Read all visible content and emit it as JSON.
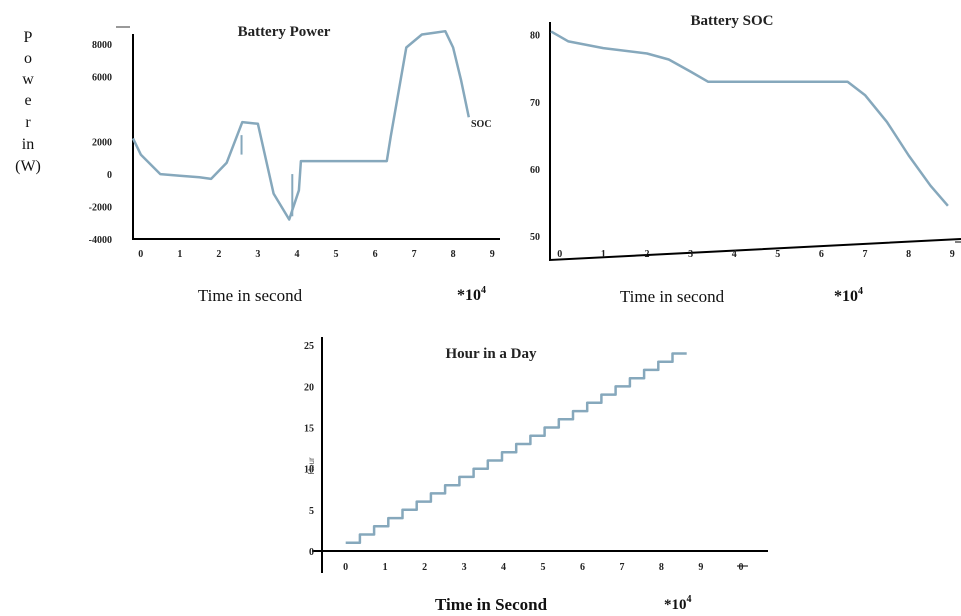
{
  "chart_data": [
    {
      "id": "power",
      "type": "line",
      "title": "Battery Power",
      "xlabel": "Time in second",
      "x_multiplier": "*10",
      "x_multiplier_exp": "4",
      "ylabel_letters": [
        "P",
        "o",
        "w",
        "e",
        "r",
        "in",
        "(W)"
      ],
      "annotation": "SOC",
      "xlim": [
        -0.2,
        9.2
      ],
      "ylim": [
        -4000,
        9000
      ],
      "xticks": [
        "0",
        "1",
        "2",
        "3",
        "4",
        "5",
        "6",
        "7",
        "8",
        "9"
      ],
      "yticks": [
        "8000",
        "6000",
        "2000",
        "0",
        "-2000",
        "-4000"
      ],
      "yticks_values": [
        8000,
        6000,
        2000,
        0,
        -2000,
        -4000
      ],
      "series": [
        {
          "color": "#86a8bc",
          "x": [
            -0.2,
            0.0,
            0.5,
            1.0,
            1.5,
            1.8,
            2.2,
            2.6,
            3.0,
            3.4,
            3.8,
            4.05,
            4.1,
            4.8,
            5.5,
            6.3,
            6.4,
            6.8,
            7.2,
            7.5,
            7.8,
            8.0,
            8.2,
            8.4
          ],
          "y": [
            2200,
            1200,
            0,
            -100,
            -200,
            -300,
            700,
            3200,
            3100,
            -1200,
            -2800,
            -1000,
            800,
            800,
            800,
            800,
            2300,
            7800,
            8600,
            8700,
            8800,
            7800,
            5800,
            3500
          ]
        }
      ]
    },
    {
      "id": "soc",
      "type": "line",
      "title": "Battery SOC",
      "xlabel": "Time in second",
      "x_multiplier": "*10",
      "x_multiplier_exp": "4",
      "xlim": [
        -0.2,
        9.2
      ],
      "ylim": [
        50,
        81
      ],
      "xticks": [
        "0",
        "1",
        "2",
        "3",
        "4",
        "5",
        "6",
        "7",
        "8",
        "9"
      ],
      "yticks": [
        "80",
        "70",
        "60",
        "50"
      ],
      "yticks_values": [
        80,
        70,
        60,
        50
      ],
      "series": [
        {
          "color": "#86a8bc",
          "x": [
            -0.2,
            0.2,
            1.0,
            2.0,
            2.5,
            3.0,
            3.4,
            3.8,
            4.2,
            5.0,
            6.0,
            6.6,
            7.0,
            7.5,
            8.0,
            8.5,
            8.9
          ],
          "y": [
            80.5,
            79.0,
            78.0,
            77.2,
            76.3,
            74.5,
            73.0,
            73.0,
            73.0,
            73.0,
            73.0,
            73.0,
            71.0,
            67.0,
            62.0,
            57.5,
            54.5
          ]
        }
      ]
    },
    {
      "id": "hour",
      "type": "line",
      "title": "Hour in a Day",
      "xlabel": "Time in Second",
      "ylabel": "Hour",
      "x_multiplier": "*10",
      "x_multiplier_exp": "4",
      "xlim": [
        -0.6,
        10.7
      ],
      "ylim": [
        0,
        26
      ],
      "xticks": [
        "0",
        "1",
        "2",
        "3",
        "4",
        "5",
        "6",
        "7",
        "8",
        "9"
      ],
      "extra_tick": "0",
      "yticks": [
        "25",
        "20",
        "15",
        "10",
        "5",
        "0"
      ],
      "yticks_values": [
        25,
        20,
        15,
        10,
        5,
        0
      ],
      "step": {
        "hours": 24,
        "seconds_per_hour": 0.36
      }
    }
  ]
}
